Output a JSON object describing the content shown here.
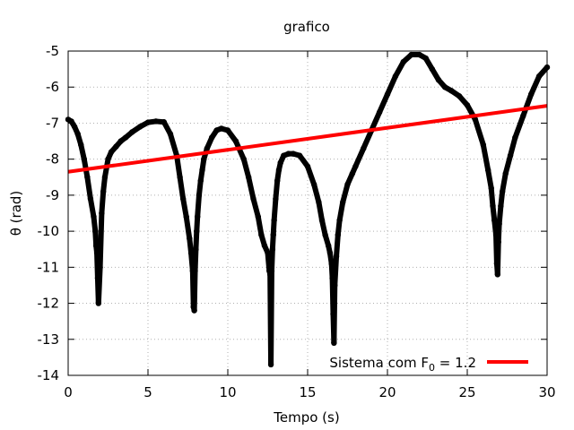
{
  "chart_data": {
    "type": "scatter",
    "title": "grafico",
    "xlabel": "Tempo (s)",
    "ylabel": "θ (rad)",
    "xlim": [
      0,
      30
    ],
    "ylim": [
      -14,
      -5
    ],
    "xticks": [
      0,
      5,
      10,
      15,
      20,
      25,
      30
    ],
    "yticks": [
      -14,
      -13,
      -12,
      -11,
      -10,
      -9,
      -8,
      -7,
      -6,
      -5
    ],
    "grid": true,
    "legend_position": "bottom-right",
    "legend": {
      "text": "Sistema com F",
      "subscript": "0",
      "suffix": " = 1.2"
    },
    "series": [
      {
        "kind": "points",
        "color": "#000000",
        "x": [
          0.0,
          0.2,
          0.4,
          0.6,
          0.8,
          1.0,
          1.2,
          1.4,
          1.6,
          1.7,
          1.75,
          1.8,
          1.85,
          1.9,
          2.0,
          2.1,
          2.2,
          2.3,
          2.5,
          2.7,
          3.0,
          3.3,
          3.6,
          4.0,
          4.5,
          5.0,
          5.5,
          6.0,
          6.4,
          6.8,
          7.0,
          7.2,
          7.4,
          7.6,
          7.7,
          7.8,
          7.85,
          7.9,
          7.95,
          8.0,
          8.05,
          8.1,
          8.2,
          8.3,
          8.4,
          8.5,
          8.7,
          9.0,
          9.3,
          9.6,
          10.0,
          10.5,
          11.0,
          11.3,
          11.6,
          11.9,
          12.1,
          12.3,
          12.5,
          12.6,
          12.65,
          12.7,
          12.75,
          12.8,
          12.85,
          12.9,
          13.0,
          13.1,
          13.2,
          13.3,
          13.5,
          13.8,
          14.1,
          14.5,
          15.0,
          15.4,
          15.7,
          15.9,
          16.1,
          16.3,
          16.4,
          16.5,
          16.55,
          16.6,
          16.65,
          16.7,
          16.8,
          16.9,
          17.0,
          17.2,
          17.5,
          17.8,
          18.0,
          18.5,
          19.0,
          19.5,
          20.0,
          20.5,
          21.0,
          21.5,
          22.0,
          22.4,
          22.8,
          23.2,
          23.6,
          24.0,
          24.5,
          25.0,
          25.5,
          26.0,
          26.3,
          26.5,
          26.6,
          26.7,
          26.8,
          26.85,
          26.9,
          26.95,
          27.0,
          27.1,
          27.2,
          27.4,
          27.7,
          28.0,
          28.5,
          29.0,
          29.5,
          30.0
        ],
        "y": [
          -6.9,
          -6.95,
          -7.1,
          -7.3,
          -7.6,
          -8.0,
          -8.5,
          -9.1,
          -9.6,
          -10.0,
          -10.4,
          -10.6,
          -11.3,
          -12.0,
          -11.0,
          -9.5,
          -8.9,
          -8.5,
          -8.0,
          -7.8,
          -7.65,
          -7.5,
          -7.4,
          -7.25,
          -7.1,
          -6.98,
          -6.95,
          -6.97,
          -7.3,
          -7.9,
          -8.5,
          -9.1,
          -9.6,
          -10.2,
          -10.6,
          -11.1,
          -12.1,
          -12.2,
          -11.1,
          -10.5,
          -10.0,
          -9.6,
          -9.0,
          -8.6,
          -8.3,
          -8.0,
          -7.7,
          -7.4,
          -7.2,
          -7.15,
          -7.2,
          -7.5,
          -8.0,
          -8.5,
          -9.1,
          -9.6,
          -10.1,
          -10.4,
          -10.6,
          -11.1,
          -11.2,
          -13.7,
          -11.1,
          -10.5,
          -10.1,
          -9.7,
          -9.1,
          -8.6,
          -8.3,
          -8.1,
          -7.9,
          -7.85,
          -7.85,
          -7.9,
          -8.2,
          -8.7,
          -9.2,
          -9.7,
          -10.1,
          -10.4,
          -10.6,
          -10.9,
          -11.3,
          -12.3,
          -13.1,
          -11.5,
          -10.7,
          -10.1,
          -9.7,
          -9.2,
          -8.7,
          -8.4,
          -8.2,
          -7.7,
          -7.2,
          -6.7,
          -6.2,
          -5.7,
          -5.3,
          -5.1,
          -5.1,
          -5.2,
          -5.5,
          -5.8,
          -6.0,
          -6.1,
          -6.25,
          -6.5,
          -6.9,
          -7.6,
          -8.3,
          -8.8,
          -9.3,
          -9.7,
          -10.1,
          -10.9,
          -11.2,
          -10.3,
          -9.8,
          -9.3,
          -8.9,
          -8.4,
          -7.9,
          -7.4,
          -6.8,
          -6.2,
          -5.7,
          -5.45
        ]
      },
      {
        "kind": "line",
        "name": "Sistema com F0 = 1.2",
        "color": "#ff0000",
        "x": [
          0,
          30
        ],
        "y": [
          -8.35,
          -6.52
        ]
      }
    ]
  }
}
